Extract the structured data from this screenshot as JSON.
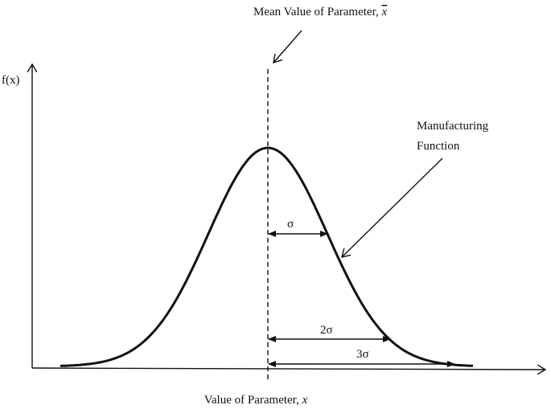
{
  "mean_label": {
    "text": "Mean Value of Parameter,",
    "symbol": "x"
  },
  "y_axis_label": "f(x)",
  "x_axis_label": {
    "text": "Value of Parameter,",
    "symbol": "x"
  },
  "curve_label": [
    "Manufacturing",
    "Function"
  ],
  "spreads": [
    "σ",
    "2σ",
    "3σ"
  ]
}
